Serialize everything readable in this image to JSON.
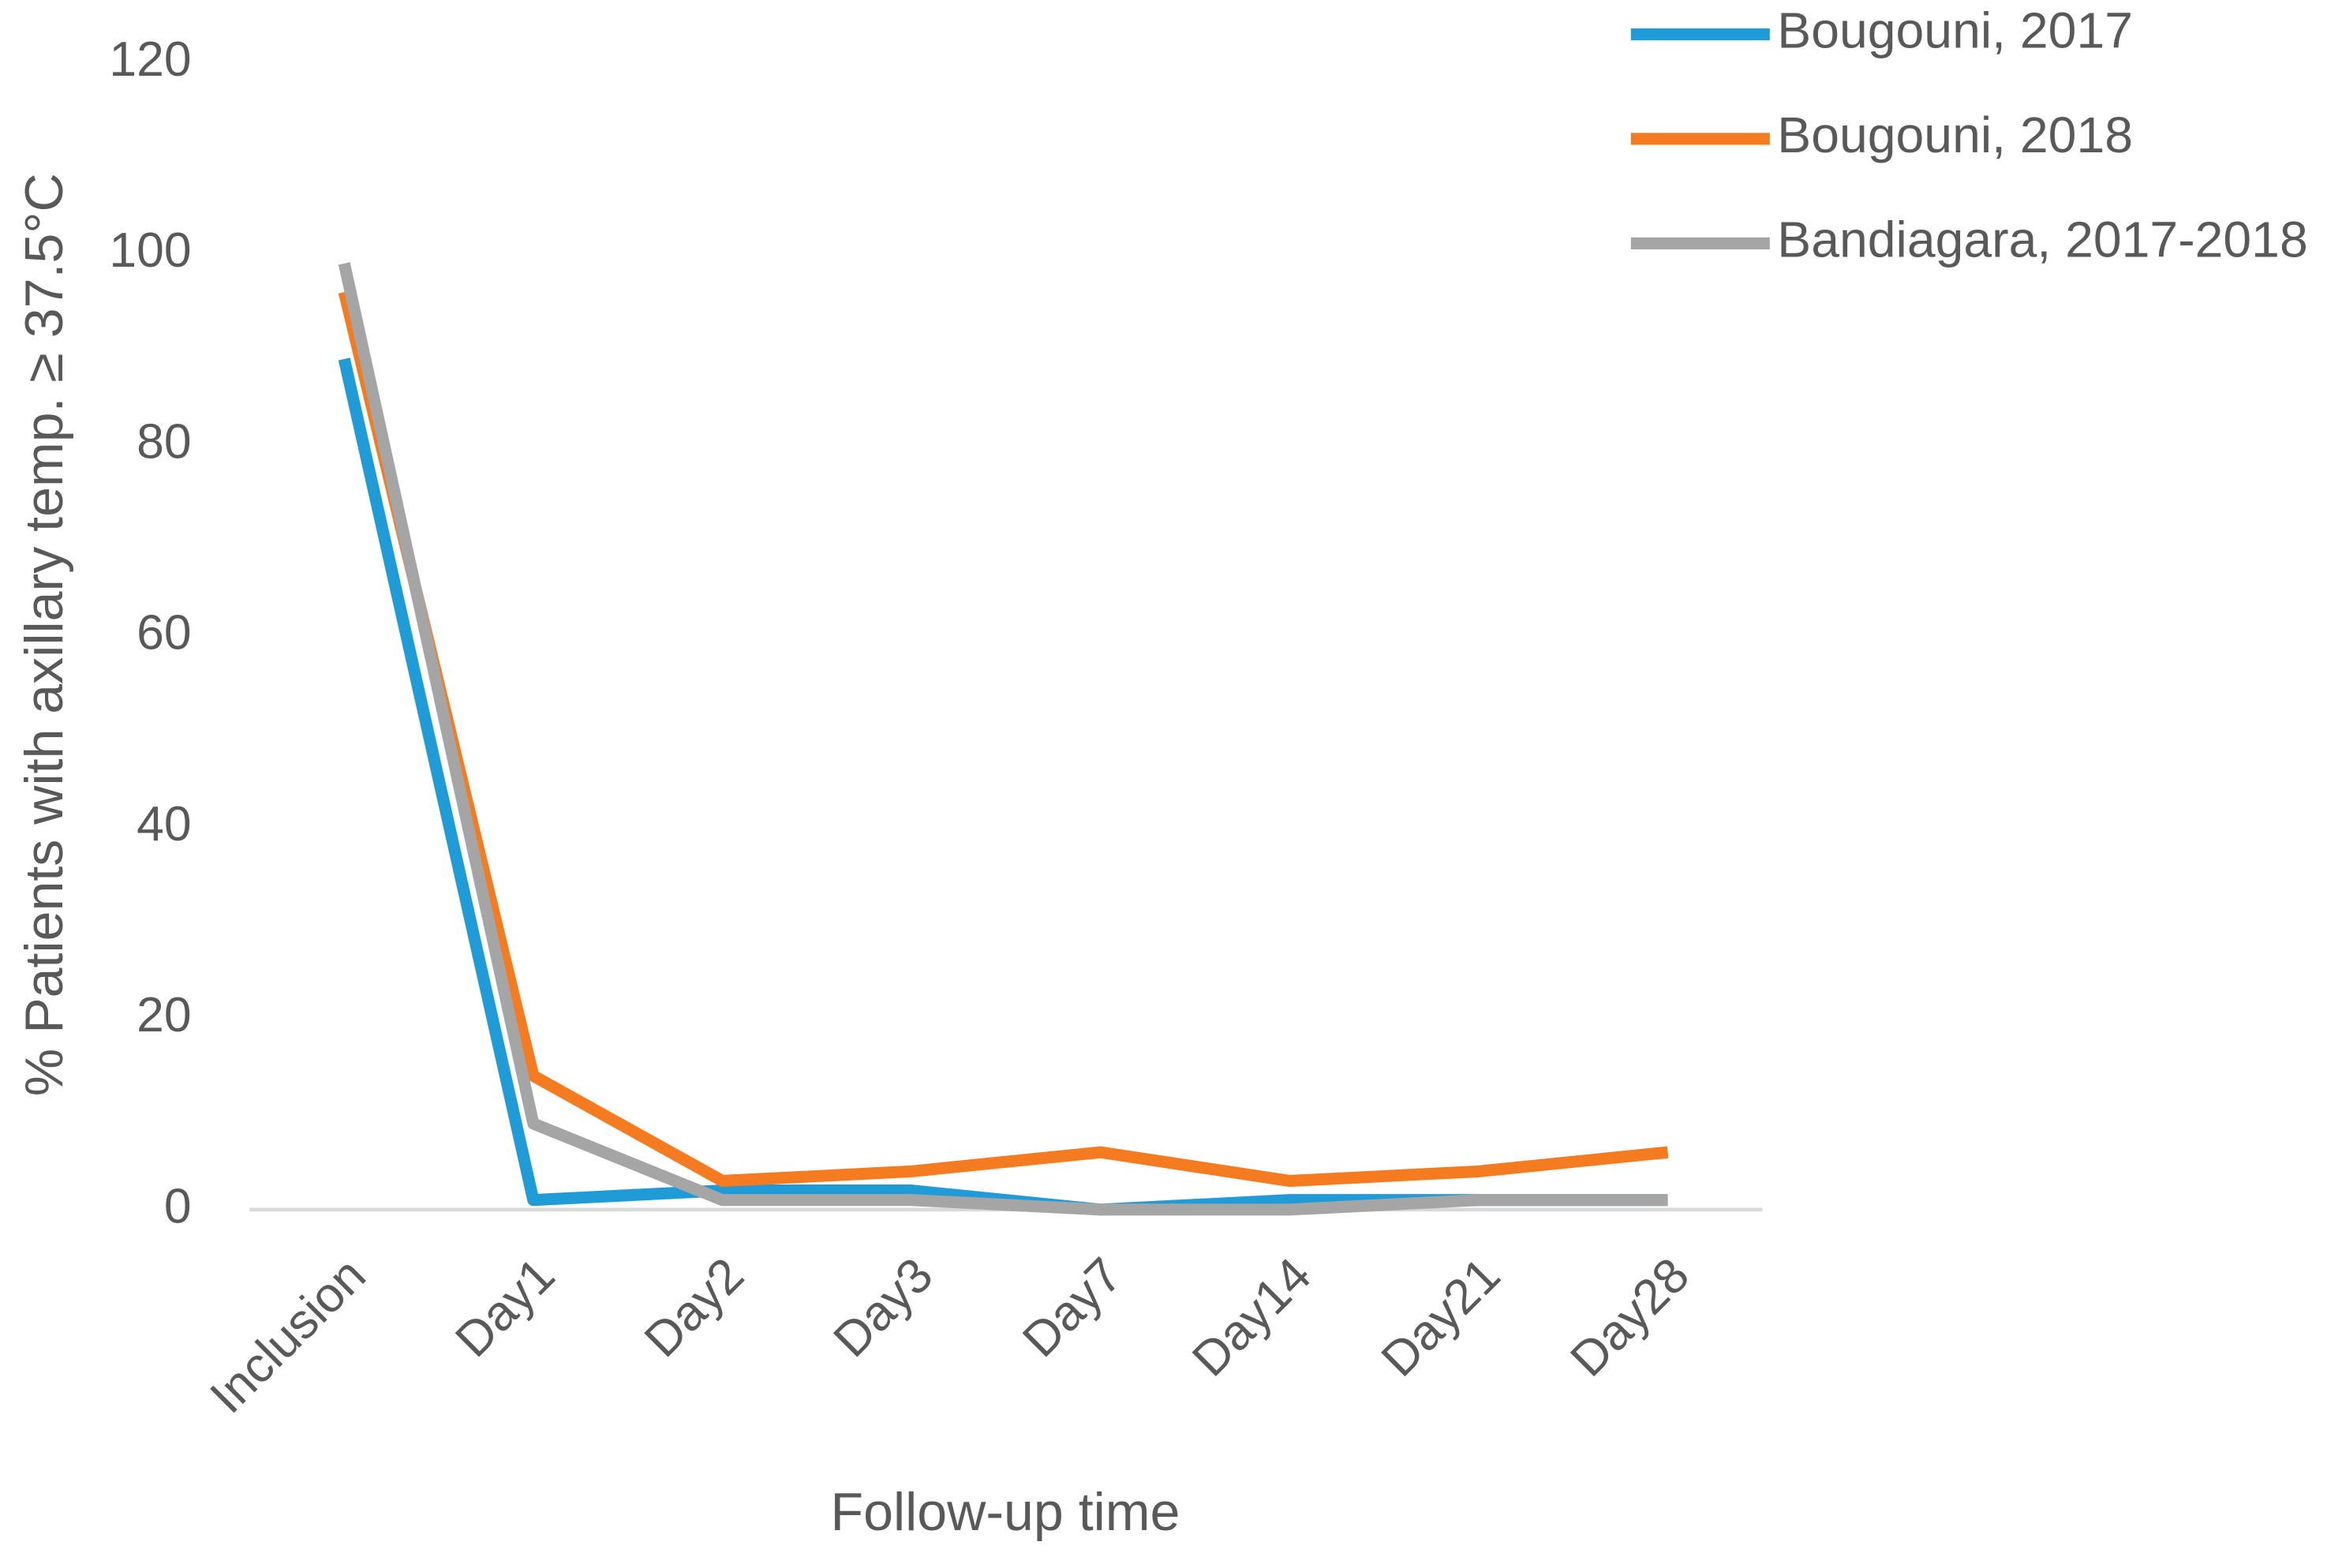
{
  "chart_data": {
    "type": "line",
    "x_label": "Follow-up time",
    "y_label": "% Patients with axillary temp. ≥ 37.5°C",
    "categories": [
      "Inclusion",
      "Day1",
      "Day2",
      "Day3",
      "Day7",
      "Day14",
      "Day21",
      "Day28"
    ],
    "series": [
      {
        "name": "Bougouni, 2017",
        "color": "#1f9bd7",
        "values": [
          89,
          1,
          2,
          2,
          0,
          1,
          1,
          1
        ]
      },
      {
        "name": "Bougouni, 2018",
        "color": "#f47b20",
        "values": [
          96,
          14,
          3,
          4,
          6,
          3,
          4,
          6
        ]
      },
      {
        "name": "Bandiagara, 2017-2018",
        "color": "#a5a5a5",
        "values": [
          99,
          9,
          1,
          1,
          0,
          0,
          1,
          1
        ]
      }
    ],
    "ylim": [
      0,
      120
    ],
    "yticks": [
      0,
      20,
      40,
      60,
      80,
      100,
      120
    ],
    "grid": false,
    "legend": "top-right"
  }
}
